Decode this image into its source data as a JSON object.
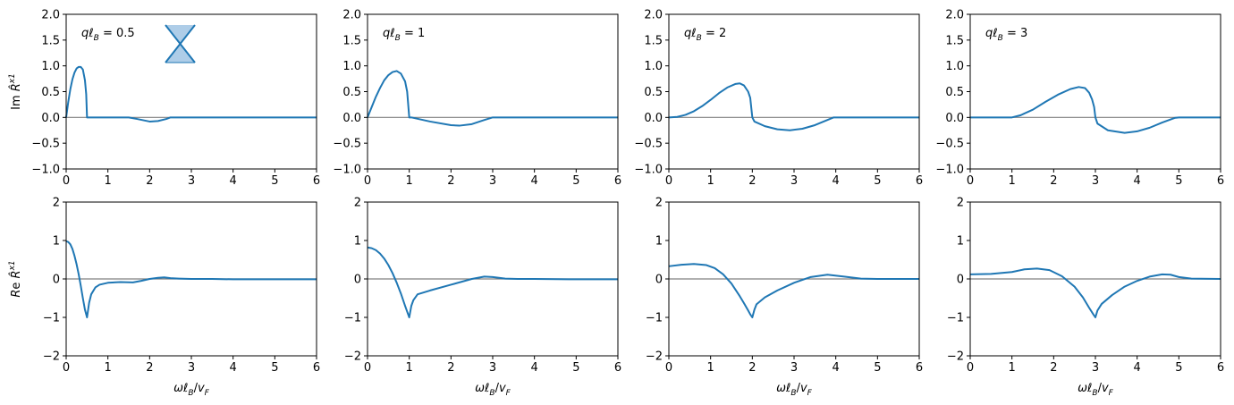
{
  "figure": {
    "row_labels": [
      "Im R̂ˣ¹",
      "Re R̂ˣ¹"
    ],
    "xlabel": "ωℓB/vF"
  },
  "colors": {
    "line": "#1f77b4",
    "zero_line": "#808080",
    "inset_fill": "#aecde8"
  },
  "inset_icon": "dirac-cone-icon",
  "chart_data": [
    {
      "type": "line",
      "panel": "Im-ql0.5",
      "annotation": "qℓB = 0.5",
      "ylabel": "Im R̂ˣ¹",
      "xlabel": "",
      "xlim": [
        0,
        6
      ],
      "ylim": [
        -1,
        2
      ],
      "xticks": [
        "0",
        "1",
        "2",
        "3",
        "4",
        "5",
        "6"
      ],
      "yticks": [
        "−1.0",
        "−0.5",
        "0.0",
        "0.5",
        "1.0",
        "1.5",
        "2.0"
      ],
      "x": [
        0,
        0.05,
        0.1,
        0.15,
        0.2,
        0.25,
        0.3,
        0.35,
        0.4,
        0.45,
        0.48,
        0.5,
        0.52,
        1.0,
        1.5,
        1.7,
        2.0,
        2.2,
        2.4,
        2.5,
        3.0,
        6.0
      ],
      "y": [
        0,
        0.3,
        0.55,
        0.74,
        0.87,
        0.95,
        0.98,
        0.98,
        0.93,
        0.72,
        0.45,
        0.0,
        0.0,
        0.0,
        0.0,
        -0.03,
        -0.08,
        -0.07,
        -0.03,
        0.0,
        0.0,
        0.0
      ]
    },
    {
      "type": "line",
      "panel": "Im-ql1",
      "annotation": "qℓB = 1",
      "ylabel": "",
      "xlabel": "",
      "xlim": [
        0,
        6
      ],
      "ylim": [
        -1,
        2
      ],
      "xticks": [
        "0",
        "1",
        "2",
        "3",
        "4",
        "5",
        "6"
      ],
      "yticks": [
        "−1.0",
        "−0.5",
        "0.0",
        "0.5",
        "1.0",
        "1.5",
        "2.0"
      ],
      "x": [
        0,
        0.1,
        0.2,
        0.3,
        0.4,
        0.5,
        0.6,
        0.7,
        0.8,
        0.9,
        0.95,
        1.0,
        1.05,
        1.5,
        2.0,
        2.2,
        2.5,
        2.8,
        3.0,
        6.0
      ],
      "y": [
        0,
        0.2,
        0.4,
        0.57,
        0.72,
        0.82,
        0.88,
        0.9,
        0.85,
        0.7,
        0.5,
        0.0,
        0.0,
        -0.08,
        -0.15,
        -0.16,
        -0.13,
        -0.05,
        0.0,
        0.0
      ]
    },
    {
      "type": "line",
      "panel": "Im-ql2",
      "annotation": "qℓB = 2",
      "ylabel": "",
      "xlabel": "",
      "xlim": [
        0,
        6
      ],
      "ylim": [
        -1,
        2
      ],
      "xticks": [
        "0",
        "1",
        "2",
        "3",
        "4",
        "5",
        "6"
      ],
      "yticks": [
        "−1.0",
        "−0.5",
        "0.0",
        "0.5",
        "1.0",
        "1.5",
        "2.0"
      ],
      "x": [
        0,
        0.2,
        0.4,
        0.6,
        0.8,
        1.0,
        1.2,
        1.4,
        1.6,
        1.7,
        1.8,
        1.9,
        1.95,
        2.0,
        2.05,
        2.3,
        2.6,
        2.9,
        3.2,
        3.5,
        3.8,
        3.95,
        6.0
      ],
      "y": [
        0,
        0.01,
        0.05,
        0.12,
        0.22,
        0.34,
        0.47,
        0.58,
        0.65,
        0.66,
        0.62,
        0.5,
        0.38,
        0.0,
        -0.08,
        -0.17,
        -0.23,
        -0.25,
        -0.22,
        -0.15,
        -0.05,
        0.0,
        0.0
      ]
    },
    {
      "type": "line",
      "panel": "Im-ql3",
      "annotation": "qℓB = 3",
      "ylabel": "",
      "xlabel": "",
      "xlim": [
        0,
        6
      ],
      "ylim": [
        -1,
        2
      ],
      "xticks": [
        "0",
        "1",
        "2",
        "3",
        "4",
        "5",
        "6"
      ],
      "yticks": [
        "−1.0",
        "−0.5",
        "0.0",
        "0.5",
        "1.0",
        "1.5",
        "2.0"
      ],
      "x": [
        0,
        1.0,
        1.2,
        1.5,
        1.8,
        2.1,
        2.4,
        2.6,
        2.75,
        2.85,
        2.92,
        2.97,
        3.0,
        3.05,
        3.3,
        3.7,
        4.0,
        4.3,
        4.6,
        4.9,
        5.0,
        6.0
      ],
      "y": [
        0,
        0,
        0.04,
        0.15,
        0.3,
        0.44,
        0.55,
        0.59,
        0.57,
        0.48,
        0.35,
        0.2,
        0.0,
        -0.12,
        -0.25,
        -0.3,
        -0.27,
        -0.2,
        -0.1,
        -0.01,
        0.0,
        0.0
      ]
    },
    {
      "type": "line",
      "panel": "Re-ql0.5",
      "ylabel": "Re R̂ˣ¹",
      "xlabel": "ωℓB/vF",
      "xlim": [
        0,
        6
      ],
      "ylim": [
        -2,
        2
      ],
      "xticks": [
        "0",
        "1",
        "2",
        "3",
        "4",
        "5",
        "6"
      ],
      "yticks": [
        "−2",
        "−1",
        "0",
        "1",
        "2"
      ],
      "x": [
        0,
        0.05,
        0.1,
        0.15,
        0.2,
        0.25,
        0.3,
        0.35,
        0.4,
        0.45,
        0.5,
        0.55,
        0.6,
        0.7,
        0.8,
        1.0,
        1.3,
        1.6,
        1.8,
        2.0,
        2.2,
        2.35,
        2.5,
        2.7,
        3.0,
        3.5,
        4.0,
        5.0,
        6.0
      ],
      "y": [
        0.98,
        0.96,
        0.9,
        0.78,
        0.6,
        0.38,
        0.12,
        -0.18,
        -0.5,
        -0.8,
        -1.0,
        -0.62,
        -0.4,
        -0.22,
        -0.15,
        -0.1,
        -0.08,
        -0.09,
        -0.05,
        0.0,
        0.03,
        0.04,
        0.02,
        0.01,
        0.0,
        0.0,
        -0.01,
        -0.01,
        -0.01
      ]
    },
    {
      "type": "line",
      "panel": "Re-ql1",
      "ylabel": "",
      "xlabel": "ωℓB/vF",
      "xlim": [
        0,
        6
      ],
      "ylim": [
        -2,
        2
      ],
      "xticks": [
        "0",
        "1",
        "2",
        "3",
        "4",
        "5",
        "6"
      ],
      "yticks": [
        "−2",
        "−1",
        "0",
        "1",
        "2"
      ],
      "x": [
        0,
        0.1,
        0.2,
        0.3,
        0.4,
        0.5,
        0.6,
        0.7,
        0.8,
        0.9,
        0.95,
        1.0,
        1.05,
        1.1,
        1.2,
        1.5,
        2.0,
        2.5,
        2.8,
        3.0,
        3.3,
        3.6,
        4.0,
        5.0,
        6.0
      ],
      "y": [
        0.82,
        0.8,
        0.75,
        0.66,
        0.53,
        0.36,
        0.15,
        -0.1,
        -0.38,
        -0.7,
        -0.85,
        -1.0,
        -0.7,
        -0.55,
        -0.4,
        -0.3,
        -0.15,
        0.0,
        0.06,
        0.05,
        0.01,
        0.0,
        0.0,
        -0.01,
        -0.01
      ]
    },
    {
      "type": "line",
      "panel": "Re-ql2",
      "ylabel": "",
      "xlabel": "ωℓB/vF",
      "xlim": [
        0,
        6
      ],
      "ylim": [
        -2,
        2
      ],
      "xticks": [
        "0",
        "1",
        "2",
        "3",
        "4",
        "5",
        "6"
      ],
      "yticks": [
        "−2",
        "−1",
        "0",
        "1",
        "2"
      ],
      "x": [
        0,
        0.3,
        0.6,
        0.9,
        1.1,
        1.3,
        1.5,
        1.7,
        1.8,
        1.9,
        1.95,
        2.0,
        2.05,
        2.1,
        2.3,
        2.6,
        3.0,
        3.4,
        3.8,
        4.2,
        4.6,
        5.0,
        6.0
      ],
      "y": [
        0.33,
        0.37,
        0.39,
        0.36,
        0.28,
        0.12,
        -0.12,
        -0.45,
        -0.63,
        -0.82,
        -0.92,
        -1.0,
        -0.8,
        -0.66,
        -0.48,
        -0.3,
        -0.1,
        0.05,
        0.11,
        0.06,
        0.01,
        0.0,
        0.0
      ]
    },
    {
      "type": "line",
      "panel": "Re-ql3",
      "ylabel": "",
      "xlabel": "ωℓB/vF",
      "xlim": [
        0,
        6
      ],
      "ylim": [
        -2,
        2
      ],
      "xticks": [
        "0",
        "1",
        "2",
        "3",
        "4",
        "5",
        "6"
      ],
      "yticks": [
        "−2",
        "−1",
        "0",
        "1",
        "2"
      ],
      "x": [
        0,
        0.5,
        1.0,
        1.3,
        1.6,
        1.9,
        2.2,
        2.5,
        2.7,
        2.85,
        2.95,
        3.0,
        3.05,
        3.15,
        3.4,
        3.7,
        4.0,
        4.3,
        4.6,
        4.8,
        5.0,
        5.3,
        6.0
      ],
      "y": [
        0.12,
        0.13,
        0.18,
        0.25,
        0.27,
        0.23,
        0.07,
        -0.2,
        -0.48,
        -0.75,
        -0.92,
        -1.0,
        -0.82,
        -0.65,
        -0.42,
        -0.2,
        -0.05,
        0.06,
        0.12,
        0.11,
        0.05,
        0.01,
        0.0
      ]
    }
  ]
}
